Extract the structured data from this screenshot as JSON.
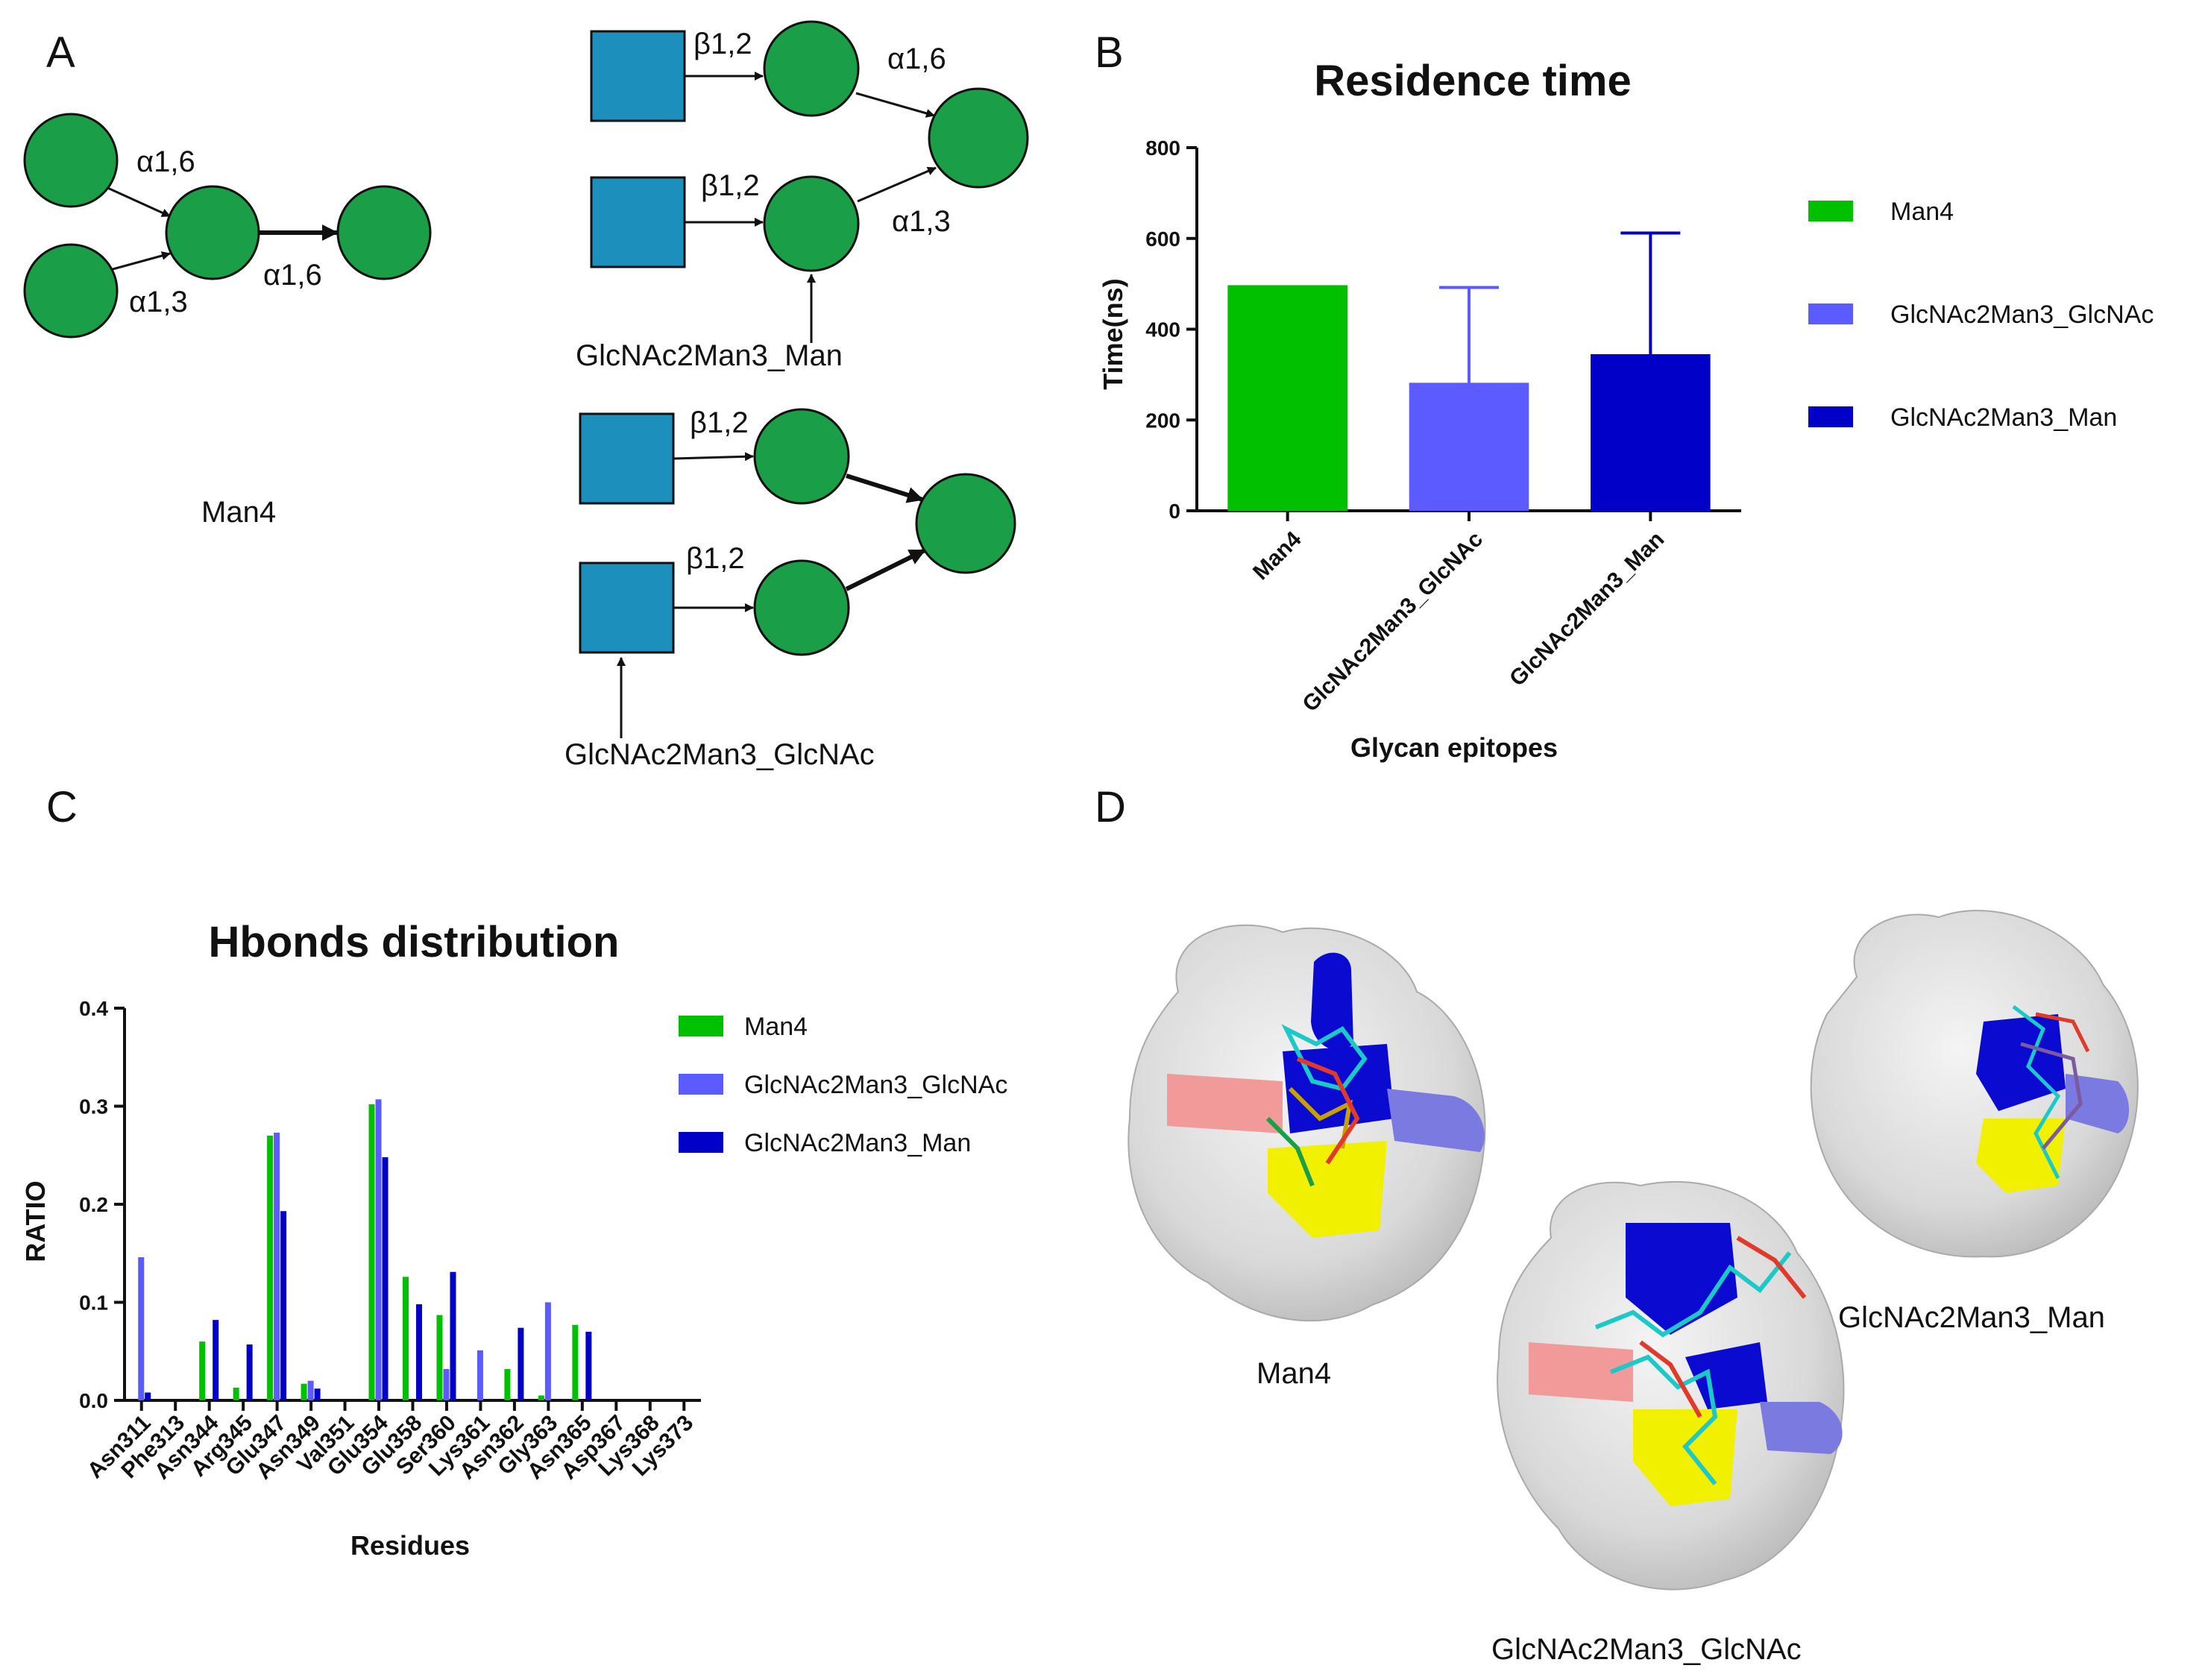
{
  "colors": {
    "man4": "#00c000",
    "glcnac2man3_glcnac": "#5b5bff",
    "glcnac2man3_man": "#0000c8",
    "mannose": "#1a9e48",
    "glcnac": "#1d8fbc"
  },
  "panel_a": {
    "label": "A",
    "man4": {
      "name": "Man4",
      "linkages": [
        "α1,6",
        "α1,3",
        "α1,6"
      ]
    },
    "glcnac2man3_man": {
      "name": "GlcNAc2Man3_Man",
      "linkages": [
        "β1,2",
        "α1,6",
        "β1,2",
        "α1,3"
      ]
    },
    "glcnac2man3_glcnac": {
      "name": "GlcNAc2Man3_GlcNAc",
      "linkages": [
        "β1,2",
        "β1,2"
      ]
    }
  },
  "panel_d": {
    "label": "D",
    "structures": [
      "Man4",
      "GlcNAc2Man3_Man",
      "GlcNAc2Man3_GlcNAc"
    ]
  },
  "chart_data": [
    {
      "panel_label": "B",
      "type": "bar",
      "title": "Residence time",
      "xlabel": "Glycan epitopes",
      "ylabel": "Time(ns)",
      "ylim": [
        0,
        800
      ],
      "yticks": [
        0,
        200,
        400,
        600,
        800
      ],
      "categories": [
        "Man4",
        "GlcNAc2Man3_GlcNAc",
        "GlcNAc2Man3_Man"
      ],
      "values": [
        497,
        282,
        345
      ],
      "error_bars": [
        0,
        210,
        267
      ],
      "legend": [
        "Man4",
        "GlcNAc2Man3_GlcNAc",
        "GlcNAc2Man3_Man"
      ],
      "legend_position": "right"
    },
    {
      "panel_label": "C",
      "type": "bar",
      "title": "Hbonds distribution",
      "xlabel": "Residues",
      "ylabel": "RATIO",
      "ylim": [
        0,
        0.4
      ],
      "yticks": [
        "0.0",
        "0.1",
        "0.2",
        "0.3",
        "0.4"
      ],
      "categories": [
        "Asn311",
        "Phe313",
        "Asn344",
        "Arg345",
        "Glu347",
        "Asn349",
        "Val351",
        "Glu354",
        "Glu358",
        "Ser360",
        "Lys361",
        "Asn362",
        "Gly363",
        "Asn365",
        "Asp367",
        "Lys368",
        "Lys373"
      ],
      "series": [
        {
          "name": "Man4",
          "values": [
            0,
            0,
            0.06,
            0.013,
            0.27,
            0.017,
            0,
            0.302,
            0.126,
            0.087,
            0,
            0.032,
            0.005,
            0.077,
            0,
            0,
            0
          ]
        },
        {
          "name": "GlcNAc2Man3_GlcNAc",
          "values": [
            0.146,
            0,
            0,
            0,
            0.273,
            0.02,
            0,
            0.307,
            0,
            0.032,
            0.051,
            0,
            0.1,
            0,
            0,
            0,
            0
          ]
        },
        {
          "name": "GlcNAc2Man3_Man",
          "values": [
            0.008,
            0,
            0.082,
            0.057,
            0.193,
            0.012,
            0,
            0.248,
            0.098,
            0.131,
            0,
            0.074,
            0,
            0.07,
            0,
            0,
            0
          ]
        }
      ],
      "legend_position": "right"
    }
  ]
}
